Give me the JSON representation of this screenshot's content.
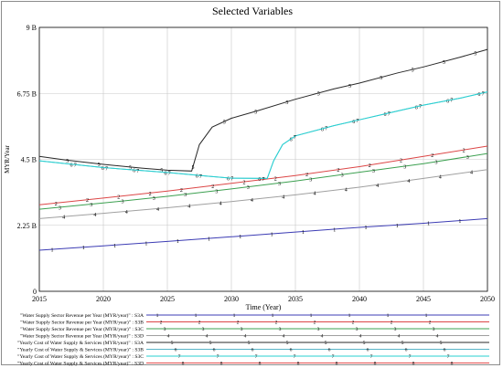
{
  "chart_data": {
    "type": "line",
    "title": "Selected Variables",
    "xlabel": "Time (Year)",
    "ylabel": "MYR/Year",
    "xlim": [
      2015,
      2050
    ],
    "ylim": [
      0,
      9000000000
    ],
    "x_ticks": [
      "2015",
      "2020",
      "2025",
      "2030",
      "2035",
      "2040",
      "2045",
      "2050"
    ],
    "y_ticks": [
      "0",
      "2.25 B",
      "4.5 B",
      "6.75 B",
      "9 B"
    ],
    "grid": true,
    "legend_position": "bottom",
    "series": [
      {
        "name": "\"Water Supply Sector Revenue per Year (MYR/year)\" : S3A",
        "marker": "1",
        "color": "#3c3cb4",
        "points": [
          [
            2015,
            1400000000
          ],
          [
            2020,
            1550000000
          ],
          [
            2025,
            1700000000
          ],
          [
            2030,
            1860000000
          ],
          [
            2035,
            2020000000
          ],
          [
            2040,
            2180000000
          ],
          [
            2045,
            2320000000
          ],
          [
            2050,
            2480000000
          ]
        ]
      },
      {
        "name": "\"Water Supply Sector Revenue per Year (MYR/year)\" : S3B",
        "marker": "2",
        "color": "#dc4646",
        "points": [
          [
            2015,
            2950000000
          ],
          [
            2020,
            3180000000
          ],
          [
            2025,
            3420000000
          ],
          [
            2030,
            3680000000
          ],
          [
            2035,
            3950000000
          ],
          [
            2040,
            4250000000
          ],
          [
            2045,
            4600000000
          ],
          [
            2050,
            4950000000
          ]
        ]
      },
      {
        "name": "\"Water Supply Sector Revenue per Year (MYR/year)\" : S3C",
        "marker": "3",
        "color": "#3ca050",
        "points": [
          [
            2015,
            2800000000
          ],
          [
            2020,
            3010000000
          ],
          [
            2025,
            3240000000
          ],
          [
            2030,
            3490000000
          ],
          [
            2035,
            3760000000
          ],
          [
            2040,
            4060000000
          ],
          [
            2045,
            4350000000
          ],
          [
            2050,
            4700000000
          ]
        ]
      },
      {
        "name": "\"Water Supply Sector Revenue per Year (MYR/year)\" : S3D",
        "marker": "4",
        "color": "#a0a0a0",
        "points": [
          [
            2015,
            2480000000
          ],
          [
            2020,
            2660000000
          ],
          [
            2025,
            2850000000
          ],
          [
            2030,
            3060000000
          ],
          [
            2035,
            3290000000
          ],
          [
            2040,
            3550000000
          ],
          [
            2045,
            3850000000
          ],
          [
            2050,
            4150000000
          ]
        ]
      },
      {
        "name": "\"Yearly Cost of Water Supply & Services (MYR/year)\" : S3A",
        "marker": "5",
        "color": "#282828",
        "points": [
          [
            2015,
            4600000000
          ],
          [
            2017,
            4480000000
          ],
          [
            2020,
            4330000000
          ],
          [
            2023,
            4200000000
          ],
          [
            2025,
            4130000000
          ],
          [
            2026.9,
            4100000000
          ],
          [
            2027.5,
            5000000000
          ],
          [
            2028.5,
            5600000000
          ],
          [
            2030,
            5900000000
          ],
          [
            2032,
            6150000000
          ],
          [
            2035,
            6550000000
          ],
          [
            2038,
            6900000000
          ],
          [
            2040,
            7100000000
          ],
          [
            2043,
            7450000000
          ],
          [
            2045,
            7650000000
          ],
          [
            2048,
            8000000000
          ],
          [
            2050,
            8250000000
          ]
        ]
      },
      {
        "name": "\"Yearly Cost of Water Supply & Services (MYR/year)\" : S3B",
        "marker": "6",
        "color": "#5ab4c8",
        "points": [
          [
            2015,
            4450000000
          ],
          [
            2020,
            4220000000
          ],
          [
            2025,
            4050000000
          ],
          [
            2028,
            3930000000
          ],
          [
            2030,
            3860000000
          ],
          [
            2032.8,
            3850000000
          ],
          [
            2033.3,
            4450000000
          ],
          [
            2034,
            5000000000
          ],
          [
            2035,
            5300000000
          ],
          [
            2038,
            5650000000
          ],
          [
            2040,
            5850000000
          ],
          [
            2043,
            6150000000
          ],
          [
            2045,
            6350000000
          ],
          [
            2048,
            6600000000
          ],
          [
            2050,
            6800000000
          ]
        ]
      },
      {
        "name": "\"Yearly Cost of Water Supply & Services (MYR/year)\" : S3C",
        "marker": "7",
        "color": "#28d2d2",
        "points": [
          [
            2015,
            4450000000
          ],
          [
            2020,
            4220000000
          ],
          [
            2025,
            4050000000
          ],
          [
            2028,
            3930000000
          ],
          [
            2030,
            3860000000
          ],
          [
            2032.8,
            3850000000
          ],
          [
            2033.3,
            4450000000
          ],
          [
            2034,
            5000000000
          ],
          [
            2035,
            5300000000
          ],
          [
            2038,
            5650000000
          ],
          [
            2040,
            5850000000
          ],
          [
            2043,
            6150000000
          ],
          [
            2045,
            6350000000
          ],
          [
            2048,
            6600000000
          ],
          [
            2050,
            6800000000
          ]
        ]
      },
      {
        "name": "\"Yearly Cost of Water Supply & Services (MYR/year)\" : S3D",
        "marker": "8",
        "color": "#e65050",
        "points": []
      }
    ]
  }
}
